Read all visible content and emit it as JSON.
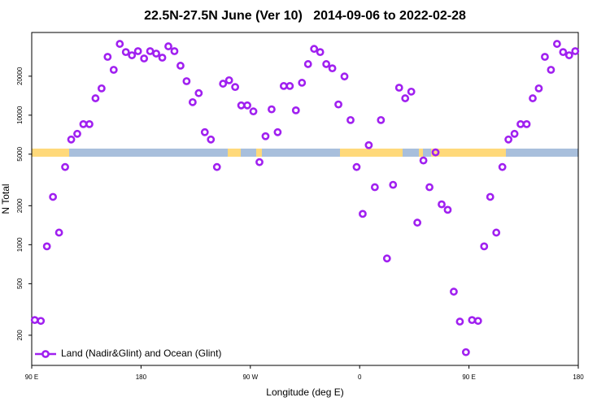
{
  "chart_data": {
    "type": "scatter",
    "title": "22.5N-27.5N June (Ver 10)   2014-09-06 to 2022-02-28",
    "x_label": "Longitude (deg E)",
    "y_label": "N Total",
    "xlim": [
      90,
      540
    ],
    "xticks": [
      {
        "value": 90,
        "label": "90 E"
      },
      180,
      {
        "value": 270,
        "label": "90 W"
      },
      {
        "value": 360,
        "label": "0"
      },
      {
        "value": 450,
        "label": "90 E"
      },
      {
        "value": 540,
        "label": "180"
      }
    ],
    "ylim": [
      117,
      43500
    ],
    "ylog": true,
    "yticks": [
      200,
      500,
      1000,
      2000,
      5000,
      10000,
      20000
    ],
    "legend": "lower left",
    "series": [
      {
        "name": "Land (Nadir&Glint) and Ocean (Glint)",
        "color": "#a020f0",
        "x": [
          92.5,
          97.5,
          102.5,
          107.5,
          112.5,
          117.5,
          122.5,
          127.5,
          132.5,
          137.5,
          142.5,
          147.5,
          152.5,
          157.5,
          162.5,
          167.5,
          172.5,
          177.5,
          182.5,
          187.5,
          192.5,
          197.5,
          202.5,
          207.5,
          212.5,
          217.5,
          222.5,
          227.5,
          232.5,
          237.5,
          242.5,
          247.5,
          252.5,
          257.5,
          262.5,
          267.5,
          272.5,
          277.5,
          282.5,
          287.5,
          292.5,
          297.5,
          302.5,
          307.5,
          312.5,
          317.5,
          322.5,
          327.5,
          332.5,
          337.5,
          342.5,
          347.5,
          352.5,
          357.5,
          362.5,
          367.5,
          372.5,
          377.5,
          382.5,
          387.5,
          392.5,
          397.5,
          402.5,
          407.5,
          412.5,
          417.5,
          422.5,
          427.5,
          432.5,
          437.5,
          442.5,
          447.5,
          452.5,
          457.5,
          462.5,
          467.5,
          472.5,
          477.5,
          482.5,
          487.5,
          492.5,
          497.5,
          502.5,
          507.5,
          512.5,
          517.5,
          522.5,
          527.5,
          532.5,
          537.5
        ],
        "values": [
          262,
          258,
          971,
          2340,
          1240,
          3980,
          6490,
          7180,
          8530,
          8530,
          13500,
          16100,
          28200,
          22400,
          35500,
          30700,
          29000,
          31200,
          27400,
          31200,
          29900,
          27800,
          34000,
          31200,
          24100,
          18300,
          12600,
          14800,
          7390,
          6490,
          3980,
          17500,
          18600,
          16500,
          11900,
          11900,
          10700,
          4340,
          6880,
          11100,
          7390,
          16800,
          16800,
          10900,
          17800,
          24800,
          32500,
          30700,
          24800,
          23000,
          12100,
          19900,
          9170,
          3980,
          1730,
          5870,
          2780,
          9170,
          783,
          2900,
          16300,
          13500,
          15200,
          1480,
          4470,
          2780,
          5160,
          2050,
          1860,
          434,
          255,
          148,
          262,
          258,
          971,
          2340,
          1240,
          3980,
          6490,
          7180,
          8530,
          8530,
          13500,
          16100,
          28200,
          22400,
          35500,
          30700,
          29000,
          31200
        ]
      }
    ]
  }
}
